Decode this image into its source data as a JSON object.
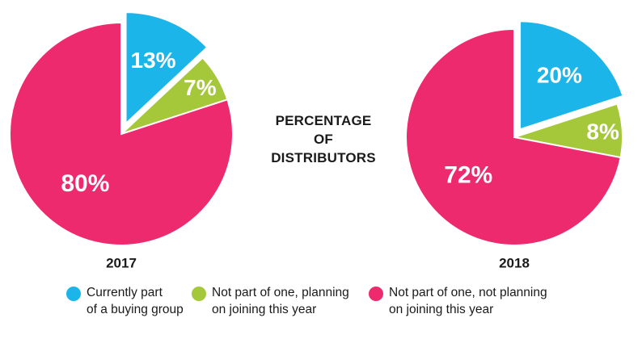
{
  "center_title": [
    "PERCENTAGE",
    "OF",
    "DISTRIBUTORS"
  ],
  "colors": {
    "currently_part": "#1cb5ea",
    "planning": "#a5c83a",
    "not_planning": "#ee2a6e"
  },
  "legend": [
    {
      "lines": [
        "Currently part",
        "of a buying group"
      ],
      "color_key": "currently_part"
    },
    {
      "lines": [
        "Not part of one, planning",
        "on joining this year"
      ],
      "color_key": "planning"
    },
    {
      "lines": [
        "Not part of one, not planning",
        "on joining this year"
      ],
      "color_key": "not_planning"
    }
  ],
  "chart_data": [
    {
      "type": "pie",
      "label": "2017",
      "slices": [
        {
          "series": "Currently part of a buying group",
          "value": 13,
          "label": "13%",
          "color_key": "currently_part",
          "exploded": true
        },
        {
          "series": "Not part of one, planning on joining this year",
          "value": 7,
          "label": "7%",
          "color_key": "planning"
        },
        {
          "series": "Not part of one, not planning on joining this year",
          "value": 80,
          "label": "80%",
          "color_key": "not_planning"
        }
      ]
    },
    {
      "type": "pie",
      "label": "2018",
      "slices": [
        {
          "series": "Currently part of a buying group",
          "value": 20,
          "label": "20%",
          "color_key": "currently_part",
          "exploded": true
        },
        {
          "series": "Not part of one, planning on joining this year",
          "value": 8,
          "label": "8%",
          "color_key": "planning"
        },
        {
          "series": "Not part of one, not planning on joining this year",
          "value": 72,
          "label": "72%",
          "color_key": "not_planning"
        }
      ]
    }
  ]
}
